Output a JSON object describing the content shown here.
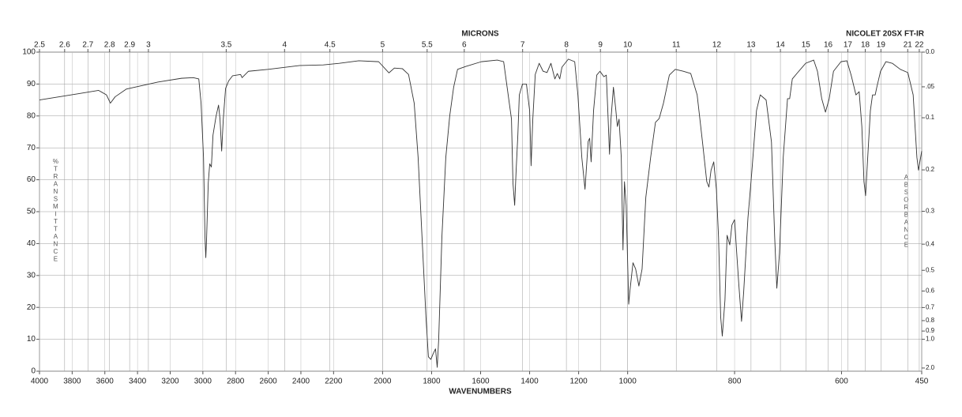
{
  "chart_data": {
    "type": "line",
    "title": "NICOLET 20SX FT-IR",
    "x2label": "MICRONS",
    "xlabel": "WAVENUMBERS",
    "ylabel": "%TRANSMITTANCE",
    "y2label": "ABSORBANCE",
    "xlim": [
      4000,
      450
    ],
    "x_scale_breaks": [
      2200,
      1000
    ],
    "xticks": [
      4000,
      3800,
      3600,
      3400,
      3200,
      3000,
      2800,
      2600,
      2400,
      2200,
      2000,
      1800,
      1600,
      1400,
      1200,
      1000,
      800,
      600,
      450
    ],
    "x2ticks": [
      2.5,
      2.6,
      2.7,
      2.8,
      2.9,
      3,
      3.5,
      4,
      4.5,
      5,
      5.5,
      6,
      7,
      8,
      9,
      10,
      11,
      12,
      13,
      14,
      15,
      16,
      17,
      18,
      19,
      21,
      22
    ],
    "ylim": [
      0,
      100
    ],
    "yticks": [
      0,
      10,
      20,
      30,
      40,
      50,
      60,
      70,
      80,
      90,
      100
    ],
    "y2ticks": [
      {
        "value": 0,
        "label": "0.0"
      },
      {
        "value": 0.05,
        "label": ".05"
      },
      0.1,
      0.2,
      0.3,
      0.4,
      0.5,
      0.6,
      0.7,
      0.8,
      0.9,
      {
        "value": 1,
        "label": "1.0"
      },
      {
        "value": 2,
        "label": "2.0"
      }
    ],
    "grid": true,
    "series": [
      {
        "name": "Transmittance",
        "color": "#333333",
        "x": [
          4000,
          3759,
          3638,
          3590,
          3566,
          3537,
          3469,
          3276,
          3131,
          3059,
          3025,
          3011,
          2996,
          2987,
          2982,
          2977,
          2967,
          2958,
          2948,
          2938,
          2919,
          2904,
          2895,
          2885,
          2875,
          2861,
          2842,
          2818,
          2769,
          2760,
          2721,
          2600,
          2407,
          2263,
          2177,
          2097,
          2016,
          1974,
          1952,
          1919,
          1894,
          1871,
          1855,
          1839,
          1823,
          1813,
          1803,
          1794,
          1784,
          1777,
          1771,
          1758,
          1742,
          1726,
          1710,
          1694,
          1661,
          1597,
          1532,
          1506,
          1474,
          1468,
          1461,
          1455,
          1448,
          1442,
          1429,
          1413,
          1400,
          1394,
          1387,
          1377,
          1361,
          1345,
          1329,
          1313,
          1297,
          1287,
          1277,
          1268,
          1242,
          1216,
          1203,
          1187,
          1174,
          1161,
          1155,
          1149,
          1139,
          1126,
          1113,
          1097,
          1087,
          1081,
          1074,
          1068,
          1058,
          1048,
          1042,
          1035,
          1026,
          1019,
          1013,
          1006,
          998,
          996,
          990,
          985,
          979,
          973,
          966,
          957,
          948,
          941,
          933,
          922,
          911,
          896,
          882,
          870,
          860,
          852,
          848,
          844,
          839,
          834,
          830,
          826,
          823,
          818,
          814,
          809,
          805,
          800,
          796,
          792,
          787,
          783,
          775,
          768,
          759,
          752,
          741,
          731,
          725,
          721,
          716,
          709,
          701,
          697,
          692,
          682,
          667,
          652,
          645,
          637,
          630,
          623,
          615,
          601,
          590,
          582,
          573,
          567,
          562,
          558,
          555,
          551,
          546,
          542,
          537,
          534,
          527,
          517,
          505,
          490,
          476,
          466,
          459,
          456,
          450
        ],
        "values": [
          85,
          87,
          88,
          86.6,
          84,
          86,
          88.4,
          90.6,
          91.8,
          92,
          91.6,
          84,
          67,
          42,
          35.6,
          42,
          59,
          65,
          64,
          74,
          80,
          83.4,
          79,
          69,
          79,
          88.6,
          91,
          92.6,
          93,
          92,
          94,
          94.6,
          95.8,
          96,
          96.5,
          97.3,
          97,
          93.5,
          95,
          94.8,
          93,
          84,
          67,
          42,
          17,
          4.5,
          3.7,
          5.4,
          7,
          1.2,
          10,
          42,
          67,
          80,
          89,
          94.6,
          95.5,
          97,
          97.5,
          97,
          79,
          59,
          52,
          63,
          74,
          86.6,
          90,
          90,
          81.7,
          64.4,
          79,
          93,
          96.5,
          94,
          93.6,
          96.5,
          91.6,
          93.3,
          91.6,
          95.3,
          97.8,
          97,
          86.6,
          67,
          57,
          72,
          73,
          65.6,
          81.7,
          92.8,
          94,
          92.3,
          92.8,
          81.7,
          68,
          79,
          89,
          81.7,
          76.7,
          79,
          67,
          38,
          59.4,
          52,
          21,
          24.8,
          34,
          32,
          26.7,
          32,
          54.5,
          67,
          78,
          79.2,
          84,
          92.8,
          94.6,
          94,
          93.3,
          86.6,
          71.8,
          59.4,
          57.7,
          63,
          65.6,
          57,
          42,
          17,
          11,
          22.3,
          42.6,
          39.6,
          45.8,
          47.5,
          37,
          27,
          15.6,
          24.8,
          48,
          62,
          81.7,
          86.6,
          85,
          71.8,
          42,
          26,
          37,
          67,
          85.4,
          85.4,
          91.6,
          93.6,
          96.5,
          97.5,
          94,
          85.4,
          81.2,
          85.4,
          94,
          97,
          97.3,
          92.8,
          86.6,
          87.6,
          76.7,
          59.4,
          55,
          67,
          81.7,
          86.6,
          86.6,
          89,
          94,
          97,
          96.5,
          94.6,
          93.6,
          86.6,
          67,
          63,
          69
        ]
      }
    ]
  }
}
